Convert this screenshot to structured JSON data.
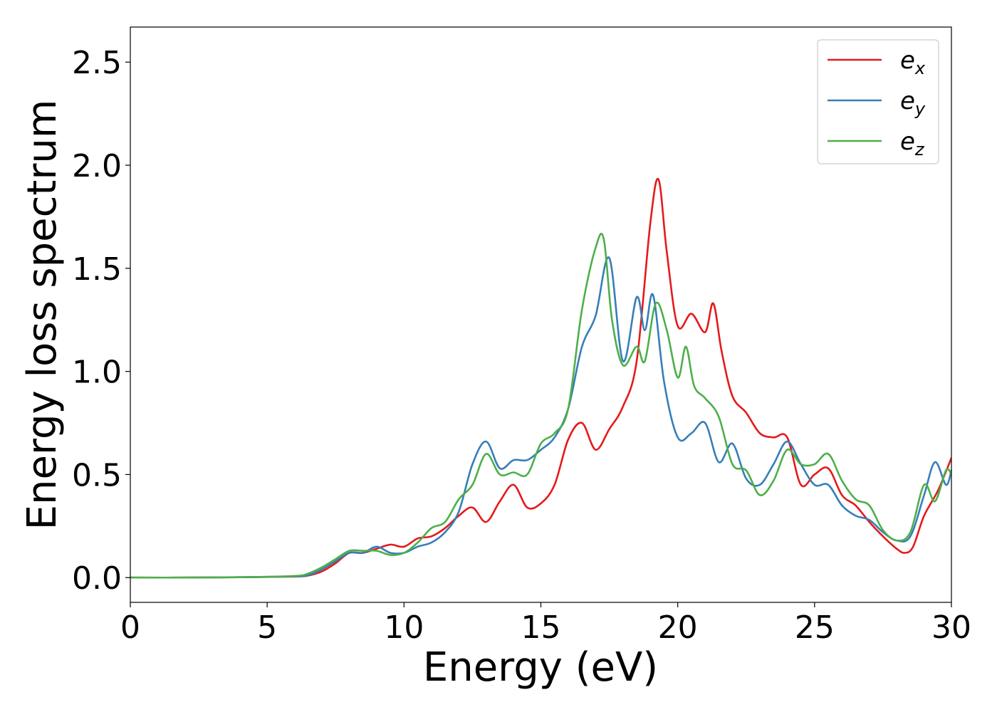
{
  "chart_data": {
    "type": "line",
    "title": "",
    "xlabel": "Energy (eV)",
    "ylabel": "Energy loss spectrum",
    "xlim": [
      0,
      30
    ],
    "ylim": [
      -0.12,
      2.67
    ],
    "xticks": [
      0,
      5,
      10,
      15,
      20,
      25,
      30
    ],
    "xtick_labels": [
      "0",
      "5",
      "10",
      "15",
      "20",
      "25",
      "30"
    ],
    "yticks": [
      0.0,
      0.5,
      1.0,
      1.5,
      2.0,
      2.5
    ],
    "ytick_labels": [
      "0.0",
      "0.5",
      "1.0",
      "1.5",
      "2.0",
      "2.5"
    ],
    "grid": false,
    "legend_position": "top-right",
    "series": [
      {
        "name": "e",
        "subscript": "x",
        "color": "#e41a1c",
        "x": [
          0,
          2,
          4,
          6,
          6.5,
          7,
          7.5,
          8,
          8.5,
          9,
          9.5,
          10,
          10.5,
          11,
          11.5,
          12,
          12.5,
          13,
          13.5,
          14,
          14.5,
          15,
          15.5,
          16,
          16.5,
          17,
          17.5,
          18,
          18.5,
          19,
          19.3,
          19.6,
          20,
          20.5,
          21,
          21.3,
          21.6,
          22,
          22.5,
          23,
          23.5,
          24,
          24.5,
          25,
          25.5,
          26,
          26.5,
          27,
          27.5,
          28,
          28.3,
          28.6,
          29,
          29.5,
          30
        ],
        "y": [
          0.0,
          0.0,
          0.002,
          0.005,
          0.01,
          0.03,
          0.07,
          0.12,
          0.12,
          0.14,
          0.16,
          0.15,
          0.19,
          0.2,
          0.24,
          0.3,
          0.34,
          0.27,
          0.37,
          0.45,
          0.34,
          0.36,
          0.45,
          0.67,
          0.75,
          0.62,
          0.72,
          0.83,
          1.05,
          1.72,
          1.93,
          1.58,
          1.22,
          1.28,
          1.19,
          1.33,
          1.1,
          0.88,
          0.8,
          0.7,
          0.68,
          0.68,
          0.45,
          0.5,
          0.53,
          0.4,
          0.35,
          0.27,
          0.2,
          0.14,
          0.12,
          0.15,
          0.3,
          0.42,
          0.58
        ]
      },
      {
        "name": "e",
        "subscript": "y",
        "color": "#377eb8",
        "x": [
          0,
          2,
          4,
          6,
          6.5,
          7,
          7.5,
          8,
          8.5,
          9,
          9.5,
          10,
          10.5,
          11,
          11.5,
          12,
          12.5,
          13,
          13.5,
          14,
          14.5,
          15,
          15.5,
          16,
          16.5,
          17,
          17.5,
          18,
          18.5,
          18.8,
          19.1,
          19.5,
          20,
          20.5,
          21,
          21.5,
          22,
          22.5,
          23,
          23.5,
          24,
          24.5,
          25,
          25.5,
          26,
          26.5,
          27,
          27.5,
          28,
          28.5,
          29,
          29.4,
          29.8,
          30
        ],
        "y": [
          0.0,
          0.0,
          0.002,
          0.006,
          0.012,
          0.04,
          0.08,
          0.12,
          0.12,
          0.15,
          0.12,
          0.12,
          0.15,
          0.17,
          0.22,
          0.32,
          0.55,
          0.66,
          0.53,
          0.57,
          0.57,
          0.62,
          0.68,
          0.82,
          1.12,
          1.27,
          1.55,
          1.05,
          1.36,
          1.2,
          1.37,
          0.95,
          0.68,
          0.7,
          0.75,
          0.56,
          0.65,
          0.48,
          0.45,
          0.55,
          0.66,
          0.55,
          0.45,
          0.45,
          0.35,
          0.3,
          0.28,
          0.22,
          0.18,
          0.2,
          0.4,
          0.56,
          0.45,
          0.52
        ]
      },
      {
        "name": "e",
        "subscript": "z",
        "color": "#4daf4a",
        "x": [
          0,
          2,
          4,
          6,
          6.5,
          7,
          7.5,
          8,
          8.5,
          9,
          9.5,
          10,
          10.5,
          11,
          11.5,
          12,
          12.5,
          13,
          13.5,
          14,
          14.5,
          15,
          15.5,
          16,
          16.5,
          17,
          17.3,
          17.6,
          18,
          18.5,
          18.8,
          19.2,
          19.6,
          20,
          20.3,
          20.6,
          21,
          21.5,
          22,
          22.5,
          23,
          23.5,
          24,
          24.5,
          25,
          25.5,
          26,
          26.5,
          27,
          27.5,
          28,
          28.5,
          29,
          29.4,
          29.8,
          30
        ],
        "y": [
          0.0,
          0.0,
          0.002,
          0.008,
          0.02,
          0.05,
          0.09,
          0.13,
          0.13,
          0.13,
          0.11,
          0.12,
          0.17,
          0.24,
          0.27,
          0.38,
          0.45,
          0.6,
          0.5,
          0.51,
          0.5,
          0.65,
          0.7,
          0.82,
          1.3,
          1.6,
          1.64,
          1.25,
          1.03,
          1.12,
          1.05,
          1.33,
          1.2,
          0.97,
          1.12,
          0.93,
          0.87,
          0.78,
          0.55,
          0.52,
          0.4,
          0.47,
          0.62,
          0.55,
          0.55,
          0.6,
          0.47,
          0.38,
          0.35,
          0.23,
          0.18,
          0.22,
          0.45,
          0.37,
          0.52,
          0.5
        ]
      }
    ]
  }
}
